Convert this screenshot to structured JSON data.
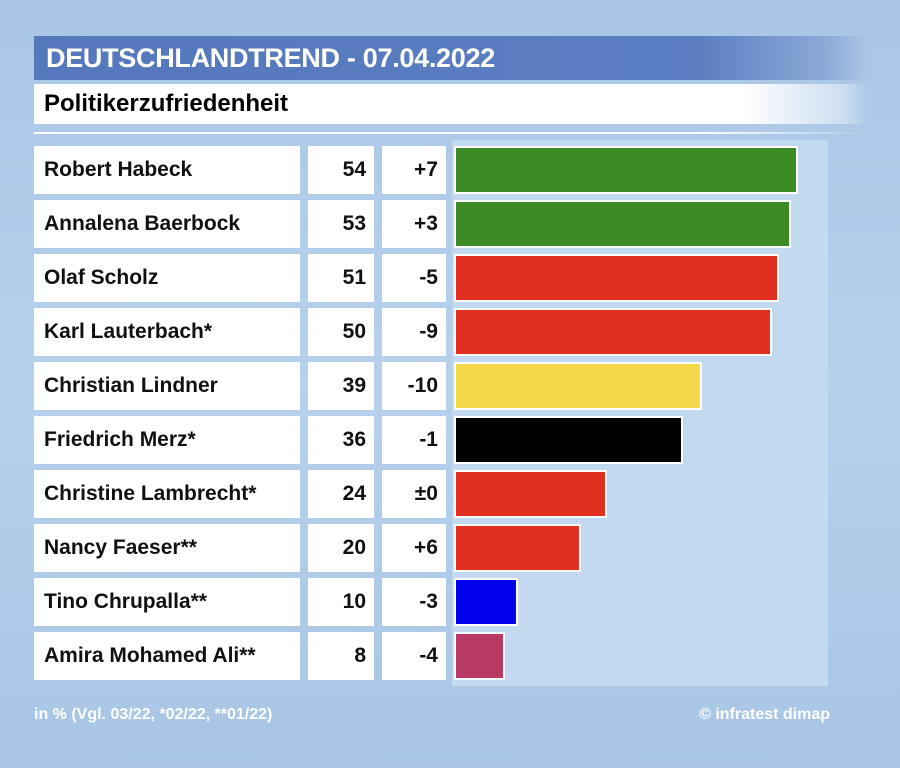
{
  "header": {
    "title": "DEUTSCHLANDTREND - 07.04.2022",
    "subtitle": "Politikerzufriedenheit"
  },
  "chart_data": {
    "type": "bar",
    "orientation": "horizontal",
    "title": "Politikerzufriedenheit",
    "xlim": [
      0,
      55
    ],
    "grid": false,
    "rows": [
      {
        "name": "Robert Habeck",
        "value": 54,
        "change": "+7",
        "color": "#3d8b24"
      },
      {
        "name": "Annalena Baerbock",
        "value": 53,
        "change": "+3",
        "color": "#3d8b24"
      },
      {
        "name": "Olaf Scholz",
        "value": 51,
        "change": "-5",
        "color": "#e03020"
      },
      {
        "name": "Karl Lauterbach*",
        "value": 50,
        "change": "-9",
        "color": "#e03020"
      },
      {
        "name": "Christian Lindner",
        "value": 39,
        "change": "-10",
        "color": "#f5d94a"
      },
      {
        "name": "Friedrich Merz*",
        "value": 36,
        "change": "-1",
        "color": "#000000"
      },
      {
        "name": "Christine Lambrecht*",
        "value": 24,
        "change": "±0",
        "color": "#e03020"
      },
      {
        "name": "Nancy Faeser**",
        "value": 20,
        "change": "+6",
        "color": "#e03020"
      },
      {
        "name": "Tino Chrupalla**",
        "value": 10,
        "change": "-3",
        "color": "#0000ee"
      },
      {
        "name": "Amira Mohamed Ali**",
        "value": 8,
        "change": "-4",
        "color": "#b83a64"
      }
    ]
  },
  "footer": {
    "note": "in % (Vgl. 03/22, *02/22, **01/22)",
    "source": "© infratest dimap"
  }
}
